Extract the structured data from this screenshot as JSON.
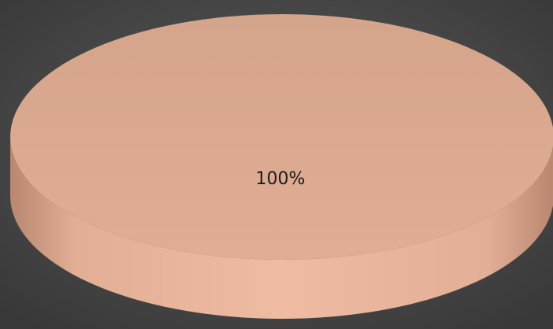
{
  "chart_data": {
    "type": "pie",
    "values": [
      100
    ],
    "value_labels": [
      "100%"
    ],
    "colors": [
      "#e6b29a"
    ]
  }
}
